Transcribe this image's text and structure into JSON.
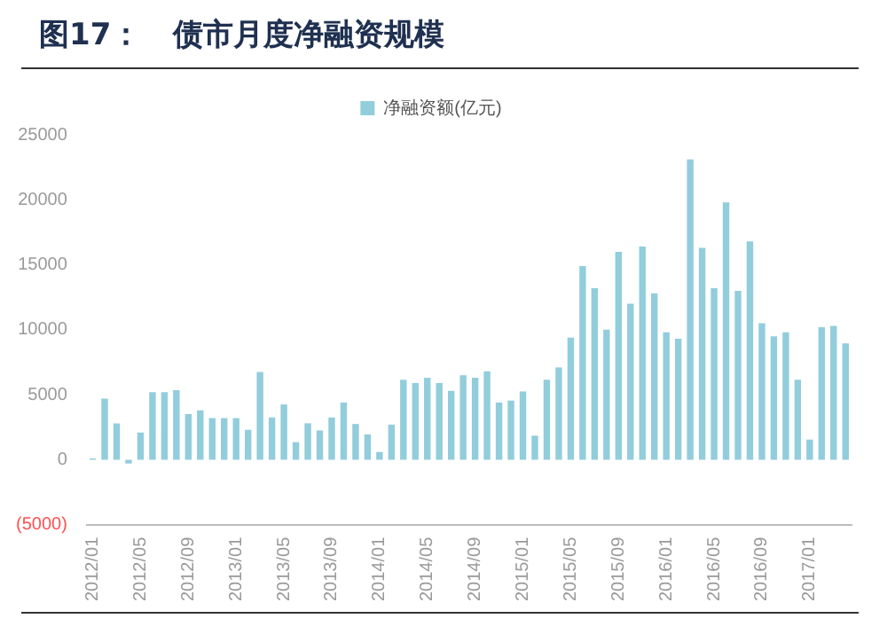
{
  "chart_data": {
    "type": "bar",
    "title": "图17：   债市月度净融资规模",
    "categories": [
      "2012/01",
      null,
      null,
      null,
      "2012/05",
      null,
      null,
      null,
      "2012/09",
      null,
      null,
      null,
      "2013/01",
      null,
      null,
      null,
      "2013/05",
      null,
      null,
      null,
      "2013/09",
      null,
      null,
      null,
      "2014/01",
      null,
      null,
      null,
      "2014/05",
      null,
      null,
      null,
      "2014/09",
      null,
      null,
      null,
      "2015/01",
      null,
      null,
      null,
      "2015/05",
      null,
      null,
      null,
      "2015/09",
      null,
      null,
      null,
      "2016/01",
      null,
      null,
      null,
      "2016/05",
      null,
      null,
      null,
      "2016/09",
      null,
      null,
      null,
      "2017/01",
      null,
      null,
      null
    ],
    "series": [
      {
        "name": "净融资额(亿元)",
        "color": "#92cddc",
        "values": [
          100,
          4700,
          2800,
          -300,
          2100,
          5200,
          5200,
          5350,
          3500,
          3800,
          3200,
          3200,
          3200,
          2300,
          6750,
          3250,
          4250,
          1350,
          2800,
          2250,
          3250,
          4400,
          2750,
          1950,
          600,
          2700,
          6150,
          5900,
          6300,
          5900,
          5300,
          6500,
          6300,
          6800,
          4400,
          4550,
          5250,
          1850,
          6150,
          7100,
          9400,
          14900,
          13200,
          10000,
          16000,
          12000,
          16400,
          12800,
          9800,
          9300,
          23100,
          16300,
          13200,
          19800,
          13000,
          16800,
          10500,
          9500,
          9800,
          6150,
          1550,
          10200,
          10300,
          8950
        ]
      }
    ],
    "ylim": [
      -5000,
      25000
    ],
    "yticks": [
      {
        "value": -5000,
        "label": "(5000)"
      },
      0,
      5000,
      10000,
      15000,
      20000,
      25000
    ],
    "grid": false,
    "legend": "top"
  }
}
